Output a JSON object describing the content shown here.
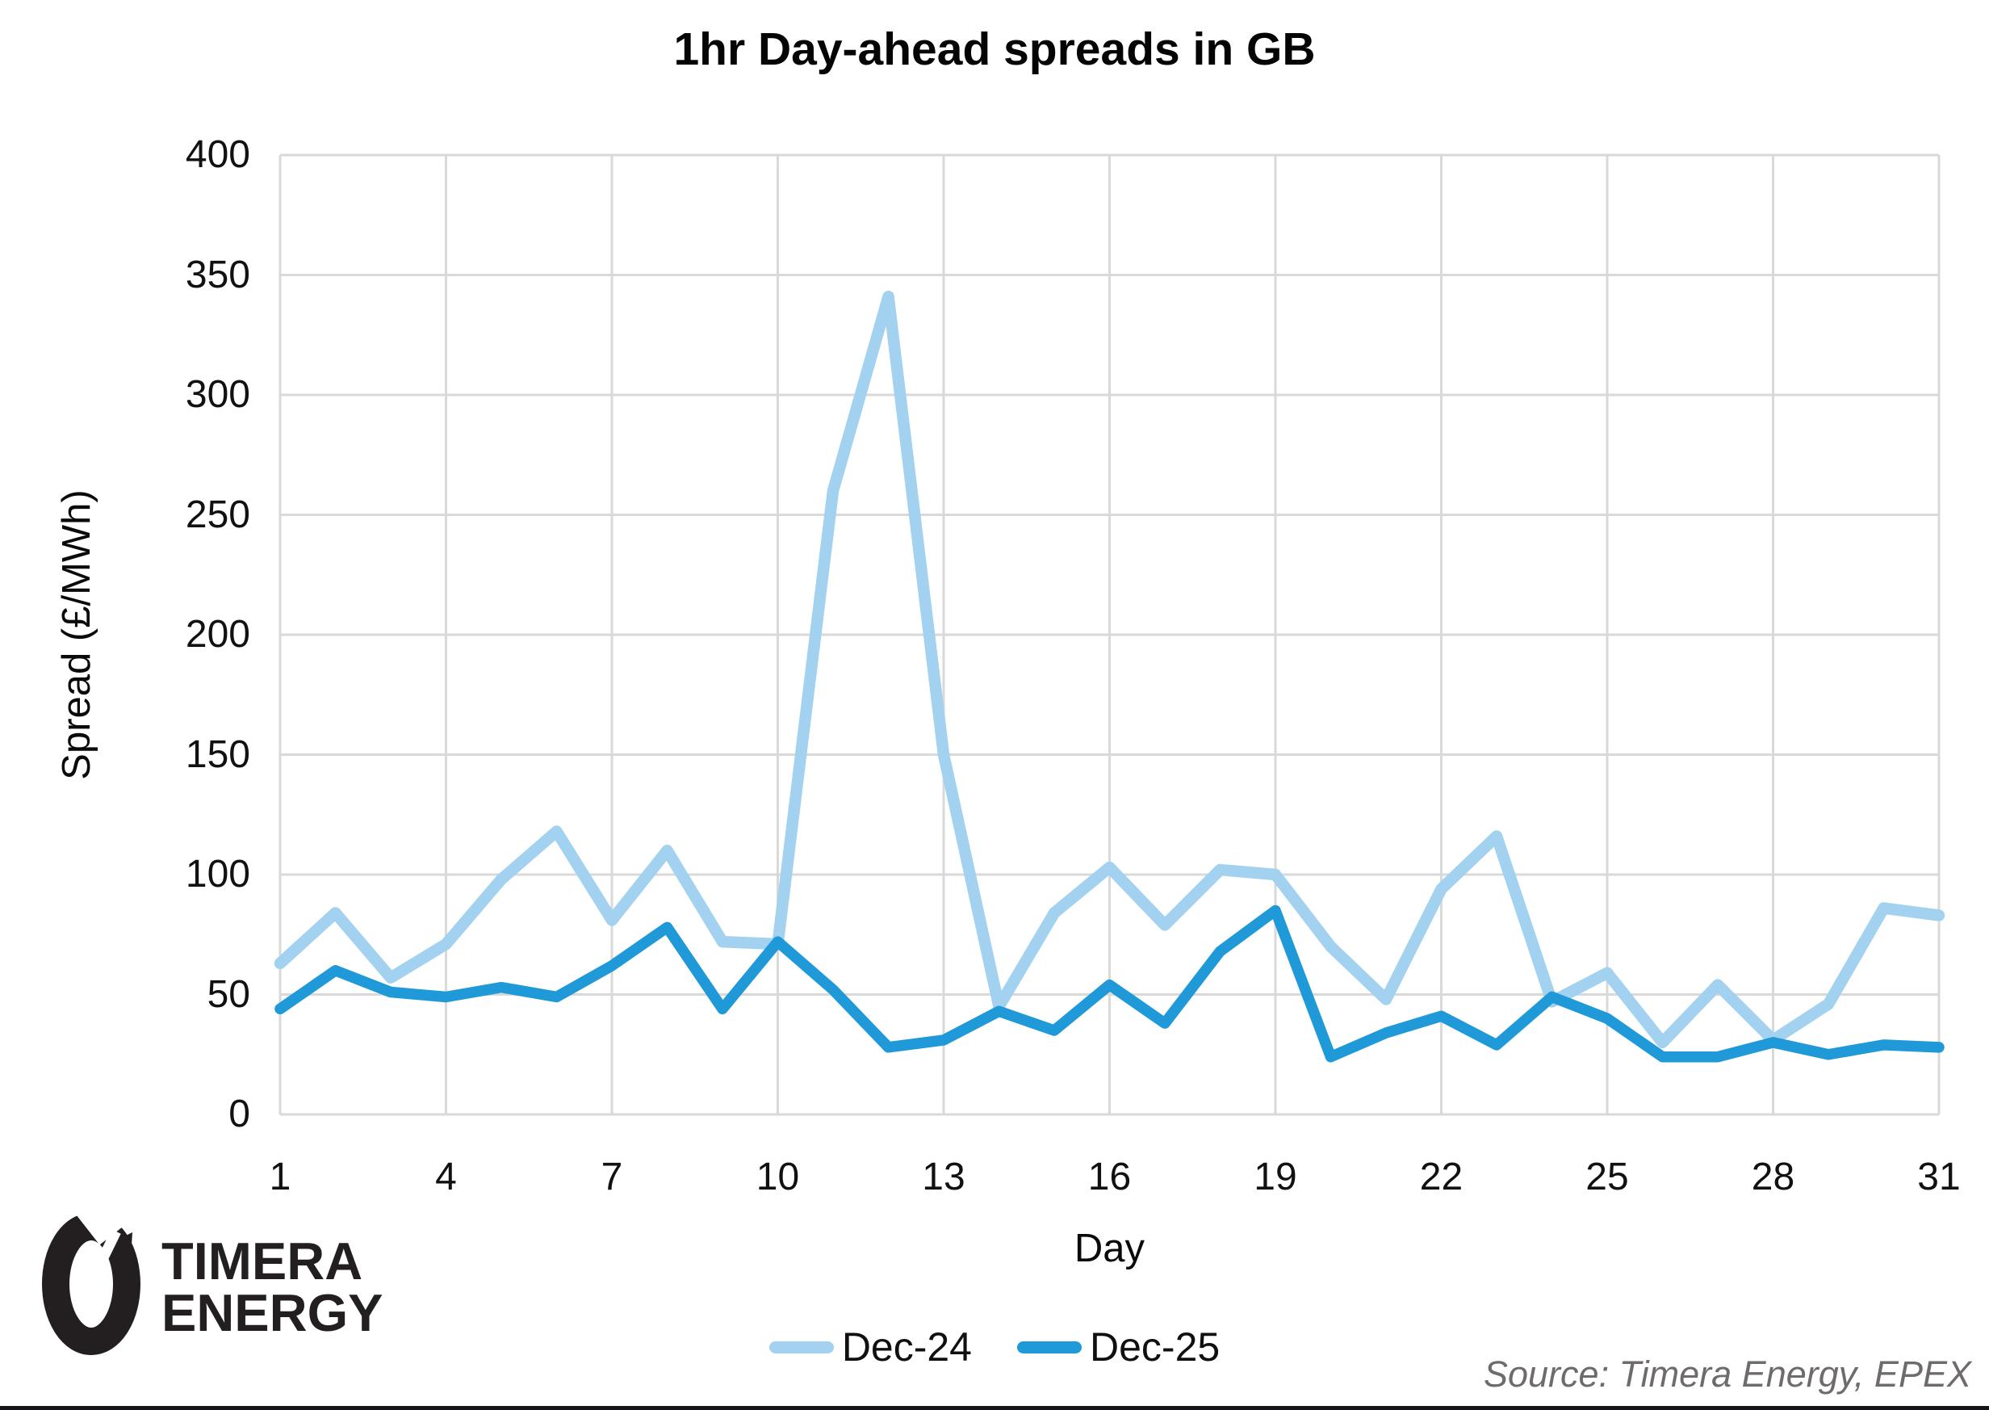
{
  "title": "1hr Day-ahead spreads in GB",
  "source": "Source: Timera Energy, EPEX",
  "logo": {
    "line1": "TIMERA",
    "line2": "ENERGY"
  },
  "colors": {
    "dec24": "#A2D2F0",
    "dec25": "#2099D8",
    "grid": "#D9D9D9",
    "logo": "#231F20",
    "source_text": "#6F6B6C"
  },
  "legend": {
    "items": [
      "Dec-24",
      "Dec-25"
    ]
  },
  "chart_data": {
    "type": "line",
    "title": "1hr Day-ahead spreads in GB",
    "xlabel": "Day",
    "ylabel": "Spread (£/MWh)",
    "x": [
      1,
      2,
      3,
      4,
      5,
      6,
      7,
      8,
      9,
      10,
      11,
      12,
      13,
      14,
      15,
      16,
      17,
      18,
      19,
      20,
      21,
      22,
      23,
      24,
      25,
      26,
      27,
      28,
      29,
      30,
      31
    ],
    "series": [
      {
        "name": "Dec-24",
        "color": "#A2D2F0",
        "values": [
          63,
          84,
          57,
          71,
          98,
          118,
          81,
          110,
          72,
          71,
          260,
          341,
          150,
          45,
          84,
          103,
          79,
          102,
          100,
          70,
          48,
          94,
          116,
          47,
          59,
          30,
          54,
          31,
          46,
          86,
          83
        ]
      },
      {
        "name": "Dec-25",
        "color": "#2099D8",
        "values": [
          44,
          60,
          51,
          49,
          53,
          49,
          62,
          78,
          44,
          72,
          52,
          28,
          31,
          43,
          35,
          54,
          38,
          68,
          85,
          24,
          34,
          41,
          29,
          49,
          40,
          24,
          24,
          30,
          25,
          29,
          28
        ]
      }
    ],
    "ylim": [
      0,
      400
    ],
    "yticks": [
      0,
      50,
      100,
      150,
      200,
      250,
      300,
      350,
      400
    ],
    "xticks": [
      1,
      4,
      7,
      10,
      13,
      16,
      19,
      22,
      25,
      28,
      31
    ],
    "grid": true,
    "legend_position": "bottom"
  }
}
